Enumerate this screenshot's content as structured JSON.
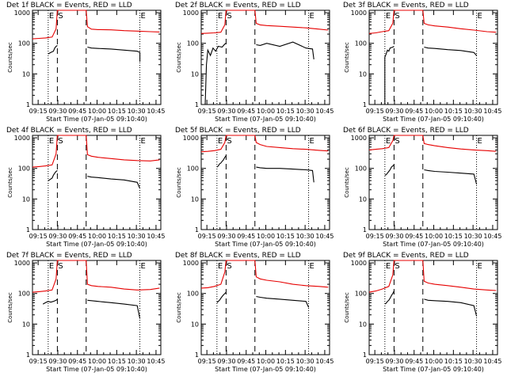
{
  "colors": {
    "events": "#000000",
    "lld": "#e60000",
    "axes": "#000000",
    "background": "#ffffff"
  },
  "common": {
    "xlabel": "Start Time (07-Jan-05 09:10:40)",
    "ylabel": "Counts/sec",
    "title_suffix": " BLACK = Events, RED = LLD",
    "x_ticks": [
      "09:15",
      "09:30",
      "09:45",
      "10:00",
      "10:15",
      "10:30",
      "10:45"
    ],
    "x_tick_minutes": [
      4.33,
      19.33,
      34.33,
      49.33,
      64.33,
      79.33,
      94.33
    ],
    "y_ticks": [
      "1",
      "10",
      "100",
      "1000"
    ],
    "y_tick_values": [
      1,
      10,
      100,
      1000
    ],
    "markers": {
      "E": "E",
      "S": "S"
    }
  },
  "chart_data": [
    {
      "type": "line",
      "title": "Det 1f BLACK = Events, RED = LLD",
      "xlabel": "Start Time (07-Jan-05 09:10:40)",
      "ylabel": "Counts/sec",
      "x_unit": "minutes after 09:10:40",
      "xlim": [
        0,
        98
      ],
      "ylim": [
        1,
        1200
      ],
      "log_y": true,
      "dotted_lines": [
        12,
        82
      ],
      "dashed_lines": [
        19,
        41
      ],
      "E_at": [
        12,
        82
      ],
      "S_at": [
        19
      ],
      "series": [
        {
          "name": "LLD",
          "x": [
            0,
            5,
            10,
            15,
            18,
            19,
            20,
            41,
            42,
            45,
            50,
            60,
            70,
            80,
            90,
            97
          ],
          "values": [
            140,
            145,
            150,
            160,
            300,
            1200,
            1200,
            1200,
            350,
            290,
            280,
            275,
            260,
            250,
            240,
            235
          ]
        },
        {
          "name": "Events",
          "x": [
            12,
            14,
            16,
            17,
            18,
            19,
            41,
            42,
            45,
            50,
            60,
            70,
            80,
            82,
            82
          ],
          "values": [
            45,
            50,
            55,
            70,
            80,
            85,
            null,
            75,
            70,
            68,
            65,
            60,
            55,
            50,
            25
          ]
        }
      ]
    },
    {
      "type": "line",
      "title": "Det 2f BLACK = Events, RED = LLD",
      "xlabel": "Start Time (07-Jan-05 09:10:40)",
      "ylabel": "Counts/sec",
      "x_unit": "minutes after 09:10:40",
      "xlim": [
        0,
        98
      ],
      "ylim": [
        1,
        1200
      ],
      "log_y": true,
      "dotted_lines": [
        12,
        82
      ],
      "dashed_lines": [
        19,
        41
      ],
      "E_at": [
        12,
        82
      ],
      "S_at": [
        19
      ],
      "series": [
        {
          "name": "LLD",
          "x": [
            0,
            5,
            10,
            15,
            18,
            19,
            20,
            41,
            42,
            45,
            50,
            60,
            70,
            80,
            90,
            97
          ],
          "values": [
            210,
            215,
            220,
            230,
            400,
            1200,
            1200,
            1200,
            450,
            400,
            380,
            360,
            340,
            320,
            290,
            270
          ]
        },
        {
          "name": "Events",
          "x": [
            3,
            4,
            5,
            7,
            9,
            11,
            13,
            16,
            18,
            19,
            41,
            42,
            45,
            50,
            60,
            70,
            80,
            85,
            86
          ],
          "values": [
            1,
            20,
            60,
            40,
            70,
            55,
            80,
            75,
            95,
            100,
            null,
            90,
            85,
            100,
            80,
            110,
            70,
            65,
            30
          ]
        }
      ]
    },
    {
      "type": "line",
      "title": "Det 3f BLACK = Events, RED = LLD",
      "xlabel": "Start Time (07-Jan-05 09:10:40)",
      "ylabel": "Counts/sec",
      "x_unit": "minutes after 09:10:40",
      "xlim": [
        0,
        98
      ],
      "ylim": [
        1,
        1200
      ],
      "log_y": true,
      "dotted_lines": [
        12,
        82
      ],
      "dashed_lines": [
        19,
        41
      ],
      "E_at": [
        12,
        82
      ],
      "S_at": [
        19
      ],
      "series": [
        {
          "name": "LLD",
          "x": [
            0,
            5,
            10,
            15,
            18,
            19,
            20,
            41,
            42,
            45,
            50,
            60,
            70,
            80,
            90,
            97
          ],
          "values": [
            210,
            220,
            240,
            260,
            450,
            1200,
            1200,
            1200,
            450,
            400,
            370,
            340,
            300,
            270,
            240,
            230
          ]
        },
        {
          "name": "Events",
          "x": [
            12,
            12,
            13,
            14,
            15,
            16,
            18,
            19,
            41,
            42,
            45,
            50,
            60,
            70,
            80,
            82
          ],
          "values": [
            1,
            35,
            45,
            60,
            55,
            70,
            75,
            80,
            null,
            75,
            70,
            68,
            62,
            58,
            50,
            40
          ]
        }
      ]
    },
    {
      "type": "line",
      "title": "Det 4f BLACK = Events, RED = LLD",
      "xlabel": "Start Time (07-Jan-05 09:10:40)",
      "ylabel": "Counts/sec",
      "x_unit": "minutes after 09:10:40",
      "xlim": [
        0,
        98
      ],
      "ylim": [
        1,
        1200
      ],
      "log_y": true,
      "dotted_lines": [
        12,
        82
      ],
      "dashed_lines": [
        19,
        41
      ],
      "E_at": [
        12,
        82
      ],
      "S_at": [
        19
      ],
      "series": [
        {
          "name": "LLD",
          "x": [
            0,
            5,
            10,
            15,
            18,
            19,
            20,
            41,
            42,
            45,
            50,
            60,
            70,
            80,
            90,
            97
          ],
          "values": [
            110,
            115,
            120,
            130,
            300,
            1200,
            1200,
            1200,
            280,
            250,
            230,
            210,
            190,
            180,
            175,
            190
          ]
        },
        {
          "name": "Events",
          "x": [
            12,
            13,
            14,
            15,
            16,
            17,
            18,
            19,
            41,
            42,
            45,
            50,
            60,
            70,
            80,
            82
          ],
          "values": [
            40,
            42,
            45,
            48,
            60,
            70,
            80,
            85,
            null,
            55,
            52,
            50,
            45,
            42,
            35,
            22
          ]
        }
      ]
    },
    {
      "type": "line",
      "title": "Det 5f BLACK = Events, RED = LLD",
      "xlabel": "Start Time (07-Jan-05 09:10:40)",
      "ylabel": "Counts/sec",
      "x_unit": "minutes after 09:10:40",
      "xlim": [
        0,
        98
      ],
      "ylim": [
        1,
        1200
      ],
      "log_y": true,
      "dotted_lines": [
        12,
        82
      ],
      "dashed_lines": [
        19,
        41
      ],
      "E_at": [
        12,
        82
      ],
      "S_at": [
        19
      ],
      "series": [
        {
          "name": "LLD",
          "x": [
            0,
            5,
            10,
            15,
            18,
            19,
            20,
            41,
            42,
            45,
            50,
            60,
            70,
            80,
            90,
            97
          ],
          "values": [
            350,
            360,
            380,
            420,
            700,
            1200,
            1200,
            1200,
            700,
            600,
            520,
            480,
            440,
            420,
            390,
            370
          ]
        },
        {
          "name": "Events",
          "x": [
            12,
            13,
            14,
            15,
            16,
            17,
            18,
            19,
            41,
            42,
            45,
            50,
            60,
            70,
            80,
            85,
            86
          ],
          "values": [
            110,
            120,
            140,
            150,
            170,
            190,
            230,
            260,
            null,
            110,
            105,
            100,
            100,
            95,
            90,
            85,
            35
          ]
        }
      ]
    },
    {
      "type": "line",
      "title": "Det 6f BLACK = Events, RED = LLD",
      "xlabel": "Start Time (07-Jan-05 09:10:40)",
      "ylabel": "Counts/sec",
      "x_unit": "minutes after 09:10:40",
      "xlim": [
        0,
        98
      ],
      "ylim": [
        1,
        1200
      ],
      "log_y": true,
      "dotted_lines": [
        12,
        82
      ],
      "dashed_lines": [
        19,
        41
      ],
      "E_at": [
        12,
        82
      ],
      "S_at": [
        19
      ],
      "series": [
        {
          "name": "LLD",
          "x": [
            0,
            5,
            10,
            15,
            18,
            19,
            20,
            41,
            42,
            45,
            50,
            60,
            70,
            80,
            90,
            97
          ],
          "values": [
            400,
            420,
            440,
            480,
            800,
            1200,
            1200,
            1200,
            650,
            600,
            550,
            480,
            430,
            400,
            380,
            360
          ]
        },
        {
          "name": "Events",
          "x": [
            12,
            13,
            14,
            15,
            16,
            17,
            18,
            19,
            41,
            42,
            45,
            50,
            60,
            70,
            80,
            82
          ],
          "values": [
            60,
            62,
            70,
            80,
            90,
            110,
            120,
            130,
            null,
            90,
            85,
            80,
            75,
            70,
            65,
            30
          ]
        }
      ]
    },
    {
      "type": "line",
      "title": "Det 7f BLACK = Events, RED = LLD",
      "xlabel": "Start Time (07-Jan-05 09:10:40)",
      "ylabel": "Counts/sec",
      "x_unit": "minutes after 09:10:40",
      "xlim": [
        0,
        98
      ],
      "ylim": [
        1,
        1200
      ],
      "log_y": true,
      "dotted_lines": [
        12,
        82
      ],
      "dashed_lines": [
        19,
        41
      ],
      "E_at": [
        12,
        82
      ],
      "S_at": [
        19
      ],
      "series": [
        {
          "name": "LLD",
          "x": [
            0,
            5,
            10,
            15,
            18,
            19,
            20,
            41,
            42,
            45,
            50,
            60,
            70,
            80,
            90,
            97
          ],
          "values": [
            110,
            115,
            120,
            130,
            300,
            1200,
            1200,
            1200,
            200,
            180,
            170,
            160,
            140,
            130,
            135,
            150
          ]
        },
        {
          "name": "Events",
          "x": [
            8,
            10,
            12,
            14,
            16,
            18,
            19,
            41,
            42,
            45,
            50,
            60,
            70,
            80,
            82
          ],
          "values": [
            45,
            50,
            55,
            52,
            55,
            60,
            65,
            null,
            60,
            58,
            55,
            50,
            45,
            40,
            15
          ]
        }
      ]
    },
    {
      "type": "line",
      "title": "Det 8f BLACK = Events, RED = LLD",
      "xlabel": "Start Time (07-Jan-05 09:10:40)",
      "ylabel": "Counts/sec",
      "x_unit": "minutes after 09:10:40",
      "xlim": [
        0,
        98
      ],
      "ylim": [
        1,
        1200
      ],
      "log_y": true,
      "dotted_lines": [
        12,
        82
      ],
      "dashed_lines": [
        19,
        41
      ],
      "E_at": [
        12,
        82
      ],
      "S_at": [
        19
      ],
      "series": [
        {
          "name": "LLD",
          "x": [
            0,
            5,
            10,
            15,
            18,
            19,
            20,
            41,
            42,
            45,
            50,
            60,
            70,
            80,
            90,
            97
          ],
          "values": [
            150,
            155,
            170,
            200,
            500,
            1200,
            1200,
            1200,
            350,
            300,
            270,
            240,
            200,
            180,
            170,
            160
          ]
        },
        {
          "name": "Events",
          "x": [
            12,
            13,
            14,
            15,
            16,
            17,
            18,
            19,
            41,
            42,
            45,
            50,
            60,
            70,
            80,
            82
          ],
          "values": [
            50,
            55,
            60,
            70,
            80,
            90,
            100,
            110,
            null,
            80,
            75,
            70,
            65,
            60,
            55,
            35
          ]
        }
      ]
    },
    {
      "type": "line",
      "title": "Det 9f BLACK = Events, RED = LLD",
      "xlabel": "Start Time (07-Jan-05 09:10:40)",
      "ylabel": "Counts/sec",
      "x_unit": "minutes after 09:10:40",
      "xlim": [
        0,
        98
      ],
      "ylim": [
        1,
        1200
      ],
      "log_y": true,
      "dotted_lines": [
        12,
        82
      ],
      "dashed_lines": [
        19,
        41
      ],
      "E_at": [
        12,
        82
      ],
      "S_at": [
        19
      ],
      "series": [
        {
          "name": "LLD",
          "x": [
            0,
            5,
            10,
            15,
            18,
            19,
            20,
            41,
            42,
            45,
            50,
            60,
            70,
            80,
            90,
            97
          ],
          "values": [
            110,
            120,
            140,
            170,
            400,
            1200,
            1200,
            1200,
            250,
            220,
            200,
            180,
            160,
            140,
            130,
            125
          ]
        },
        {
          "name": "Events",
          "x": [
            12,
            13,
            14,
            15,
            16,
            17,
            18,
            19,
            41,
            42,
            45,
            50,
            60,
            70,
            80,
            82
          ],
          "values": [
            45,
            48,
            55,
            60,
            70,
            85,
            100,
            120,
            null,
            65,
            60,
            58,
            55,
            50,
            40,
            18
          ]
        }
      ]
    }
  ]
}
